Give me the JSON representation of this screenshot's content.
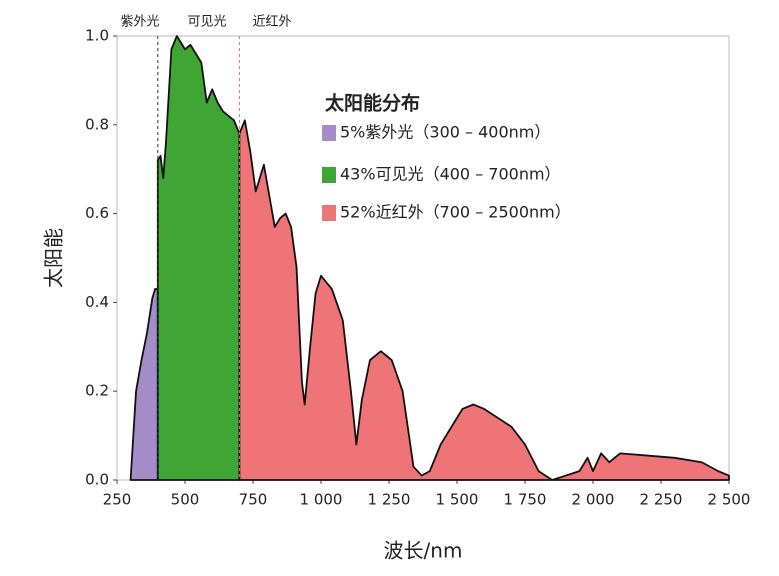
{
  "chart_data": {
    "type": "area",
    "x_label": "波长/nm",
    "y_label": "太阳能",
    "legend_title": "太阳能分布",
    "region_labels": [
      "紫外光",
      "可见光",
      "近红外"
    ],
    "boundaries": [
      400,
      700
    ],
    "xlim": [
      250,
      2500
    ],
    "ylim": [
      0,
      1.0
    ],
    "xticks": [
      250,
      500,
      750,
      {
        "value": 1000,
        "label": "1 000"
      },
      {
        "value": 1250,
        "label": "1 250"
      },
      {
        "value": 1500,
        "label": "1 500"
      },
      {
        "value": 1750,
        "label": "1 750"
      },
      {
        "value": 2000,
        "label": "2 000"
      },
      {
        "value": 2250,
        "label": "2 250"
      },
      {
        "value": 2500,
        "label": "2 500"
      }
    ],
    "yticks": [
      {
        "value": 0,
        "label": "0.0"
      },
      0.2,
      0.4,
      0.6,
      0.8,
      {
        "value": 1.0,
        "label": "1.0"
      }
    ],
    "series": [
      {
        "name": "5%紫外光（300 – 400nm）",
        "color": "#a48cc8",
        "x": [
          300,
          320,
          340,
          360,
          380,
          390,
          400
        ],
        "values": [
          0,
          0.2,
          0.27,
          0.33,
          0.41,
          0.43,
          0.43
        ]
      },
      {
        "name": "43%可见光（400 – 700nm）",
        "color": "#3fa535",
        "x": [
          400,
          410,
          420,
          430,
          450,
          470,
          490,
          500,
          520,
          540,
          560,
          580,
          600,
          620,
          640,
          660,
          680,
          700
        ],
        "values": [
          0.72,
          0.73,
          0.68,
          0.76,
          0.97,
          1.0,
          0.98,
          0.97,
          0.98,
          0.96,
          0.94,
          0.85,
          0.88,
          0.85,
          0.83,
          0.82,
          0.81,
          0.78
        ]
      },
      {
        "name": "52%近红外（700 – 2500nm）",
        "color": "#ee7478",
        "x": [
          700,
          720,
          740,
          760,
          790,
          810,
          830,
          850,
          870,
          890,
          910,
          930,
          940,
          960,
          980,
          1000,
          1040,
          1080,
          1110,
          1130,
          1150,
          1180,
          1220,
          1260,
          1300,
          1340,
          1370,
          1400,
          1440,
          1480,
          1520,
          1560,
          1600,
          1650,
          1700,
          1750,
          1800,
          1850,
          1900,
          1950,
          1980,
          2000,
          2030,
          2060,
          2100,
          2200,
          2300,
          2400,
          2460,
          2500
        ],
        "values": [
          0.78,
          0.81,
          0.74,
          0.65,
          0.71,
          0.64,
          0.57,
          0.59,
          0.6,
          0.57,
          0.48,
          0.22,
          0.17,
          0.3,
          0.42,
          0.46,
          0.43,
          0.36,
          0.2,
          0.08,
          0.18,
          0.27,
          0.29,
          0.27,
          0.2,
          0.03,
          0.01,
          0.02,
          0.08,
          0.12,
          0.16,
          0.17,
          0.16,
          0.14,
          0.12,
          0.08,
          0.02,
          0.0,
          0.01,
          0.02,
          0.05,
          0.02,
          0.06,
          0.04,
          0.06,
          0.055,
          0.05,
          0.04,
          0.02,
          0.01
        ]
      }
    ]
  }
}
